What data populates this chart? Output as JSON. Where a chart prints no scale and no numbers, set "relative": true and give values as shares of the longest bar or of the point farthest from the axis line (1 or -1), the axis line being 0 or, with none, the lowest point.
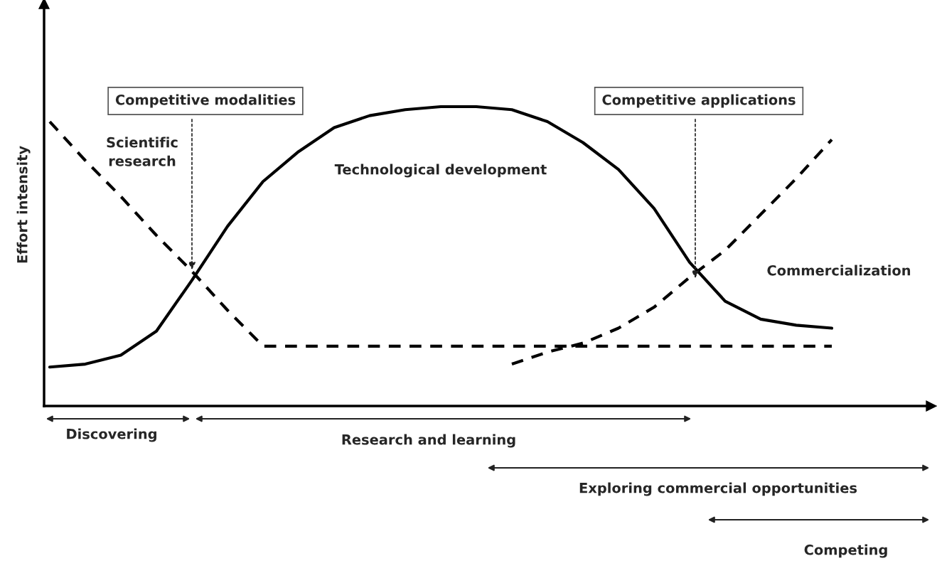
{
  "chart_data": {
    "type": "line",
    "relative": true,
    "ylabel": "Effort intensity",
    "legend": false,
    "categories": [
      null,
      null,
      null,
      null,
      null,
      null,
      null,
      null,
      null,
      null,
      null,
      null,
      null,
      null,
      null,
      null,
      null,
      null,
      null,
      null,
      null,
      null,
      null,
      null
    ],
    "series": [
      {
        "name": "Scientific research",
        "color": "#000000",
        "line_style": "dashed",
        "values": [
          0.95,
          0.82,
          0.7,
          0.57,
          0.45,
          0.32,
          0.2,
          0.2,
          0.2,
          0.2,
          0.2,
          0.2,
          0.2,
          0.2,
          0.2,
          0.2,
          0.2,
          0.2,
          0.2,
          0.2,
          0.2,
          0.2,
          0.2,
          null
        ]
      },
      {
        "name": "Technological development",
        "color": "#000000",
        "line_style": "solid",
        "values": [
          0.13,
          0.14,
          0.17,
          0.25,
          0.42,
          0.6,
          0.75,
          0.85,
          0.93,
          0.97,
          0.99,
          1.0,
          1.0,
          0.99,
          0.95,
          0.88,
          0.79,
          0.66,
          0.48,
          0.35,
          0.29,
          0.27,
          0.26,
          null
        ]
      },
      {
        "name": "Commercialization",
        "color": "#000000",
        "line_style": "dashed",
        "values": [
          null,
          null,
          null,
          null,
          null,
          null,
          null,
          null,
          null,
          null,
          null,
          null,
          null,
          0.14,
          0.18,
          0.21,
          0.26,
          0.33,
          0.43,
          0.52,
          0.64,
          0.76,
          0.89,
          null
        ]
      }
    ],
    "annotations": [
      "Competitive modalities",
      "Competitive applications",
      "Discovering",
      "Research and learning",
      "Exploring commercial opportunities",
      "Competing"
    ]
  }
}
